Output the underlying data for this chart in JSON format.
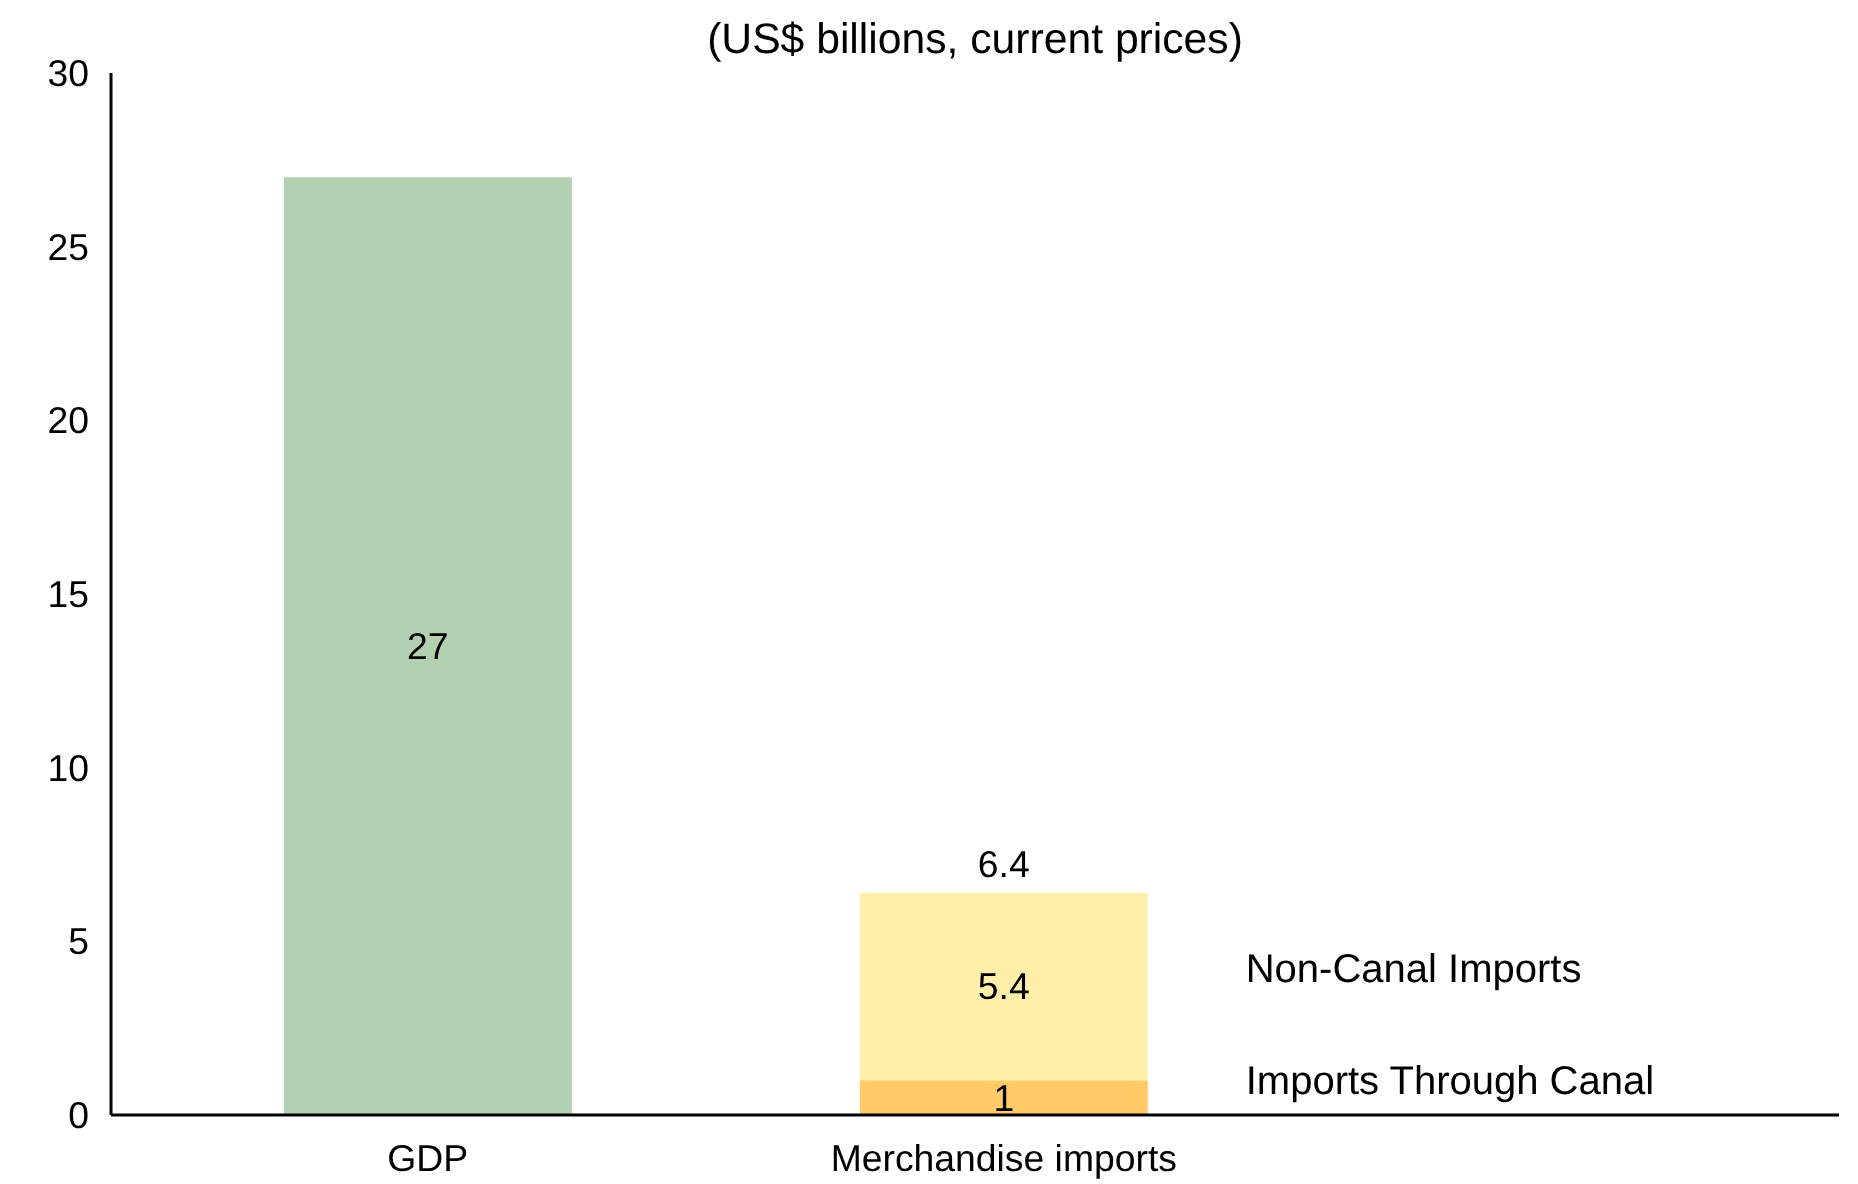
{
  "chart_data": {
    "type": "bar",
    "subtitle": "(US$ billions, current prices)",
    "categories": [
      "GDP",
      "Merchandise imports"
    ],
    "stacked": true,
    "series": [
      {
        "color": "#b2d1b1",
        "values": [
          27,
          null
        ]
      },
      {
        "name": "Imports Through Canal",
        "color": "#ffcb66",
        "values": [
          null,
          1
        ]
      },
      {
        "name": "Non-Canal Imports",
        "color": "#ffefab",
        "values": [
          null,
          5.4
        ]
      }
    ],
    "data_labels": true,
    "totals": [
      null,
      "6.4"
    ],
    "ylim": [
      0,
      30
    ],
    "yticks": [
      0,
      5,
      10,
      15,
      20,
      25,
      30
    ],
    "grid": false,
    "legend": "right"
  }
}
